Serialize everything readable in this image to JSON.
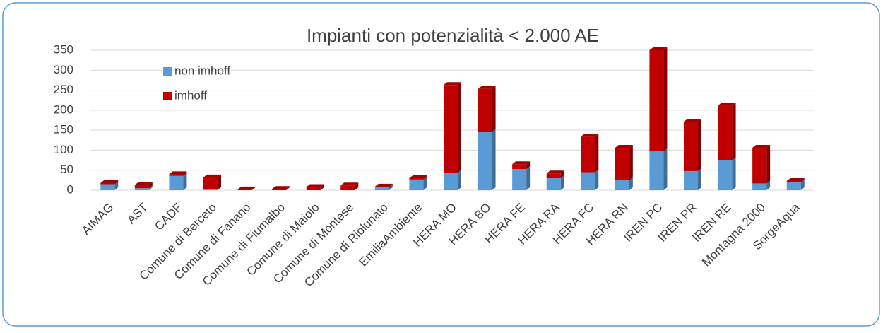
{
  "chart_data": {
    "type": "stacked_bar",
    "title": "Impianti con potenzialità < 2.000 AE",
    "categories": [
      "AIMAG",
      "AST",
      "CADF",
      "Comune di Berceto",
      "Comune di Fanano",
      "Comune di Fiumalbo",
      "Comune di Maiolo",
      "Comune di Montese",
      "Comune di Riolunato",
      "EmiliaAmbiente",
      "HERA MO",
      "HERA BO",
      "HERA FE",
      "HERA RA",
      "HERA FC",
      "HERA RN",
      "IREN PC",
      "IREN PR",
      "IREN RE",
      "Montagna 2000",
      "SorgeAqua"
    ],
    "series": [
      {
        "name": "non imhoff",
        "color": "#5b9bd5",
        "values": [
          15,
          5,
          36,
          2,
          0,
          0,
          0,
          0,
          7,
          27,
          44,
          146,
          53,
          30,
          45,
          25,
          97,
          48,
          75,
          17,
          20
        ]
      },
      {
        "name": "imhoff",
        "color": "#c00000",
        "values": [
          3,
          8,
          4,
          30,
          2,
          3,
          8,
          12,
          2,
          3,
          219,
          107,
          12,
          12,
          89,
          81,
          253,
          123,
          137,
          89,
          3
        ]
      }
    ],
    "ylim": [
      0,
      350
    ],
    "yticks": [
      0,
      50,
      100,
      150,
      200,
      250,
      300,
      350
    ],
    "grid": true,
    "legend": "upper left"
  }
}
